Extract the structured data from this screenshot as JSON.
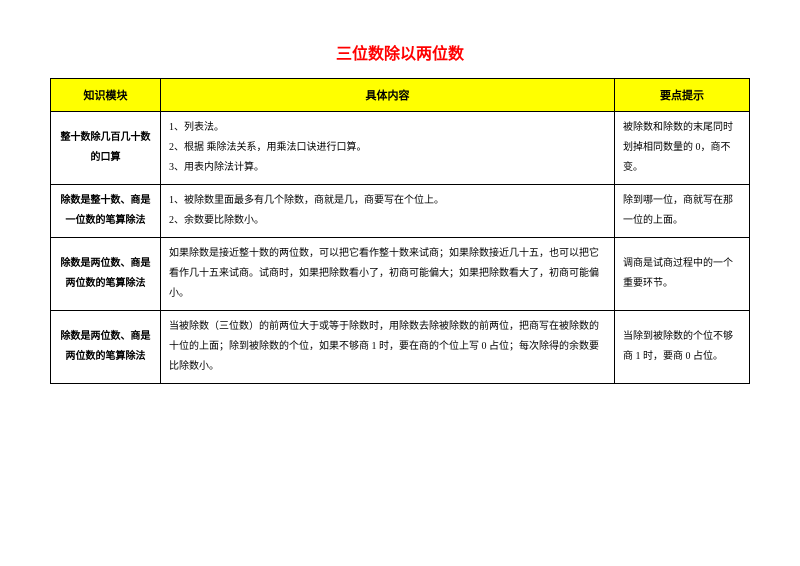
{
  "title": "三位数除以两位数",
  "headers": {
    "module": "知识模块",
    "content": "具体内容",
    "key": "要点提示"
  },
  "rows": [
    {
      "module": "整十数除几百几十数的口算",
      "content_items": [
        "1、列表法。",
        "2、根据 乘除法关系，用乘法口诀进行口算。",
        "3、用表内除法计算。"
      ],
      "key": "被除数和除数的末尾同时划掉相同数量的 0，商不变。"
    },
    {
      "module": "除数是整十数、商是一位数的笔算除法",
      "content_items": [
        "1、被除数里面最多有几个除数，商就是几，商要写在个位上。",
        "2、余数要比除数小。"
      ],
      "key": "除到哪一位，商就写在那一位的上面。"
    },
    {
      "module": "除数是两位数、商是两位数的笔算除法",
      "content_text": "如果除数是接近整十数的两位数，可以把它看作整十数来试商；如果除数接近几十五，也可以把它看作几十五来试商。试商时，如果把除数看小了，初商可能偏大；如果把除数看大了，初商可能偏小。",
      "key": "调商是试商过程中的一个重要环节。"
    },
    {
      "module": "除数是两位数、商是两位数的笔算除法",
      "content_text": "当被除数（三位数）的前两位大于或等于除数时，用除数去除被除数的前两位，把商写在被除数的十位的上面；除到被除数的个位，如果不够商 1 时，要在商的个位上写 0 占位；每次除得的余数要比除数小。",
      "key": "当除到被除数的个位不够商 1 时，要商 0 占位。"
    }
  ]
}
